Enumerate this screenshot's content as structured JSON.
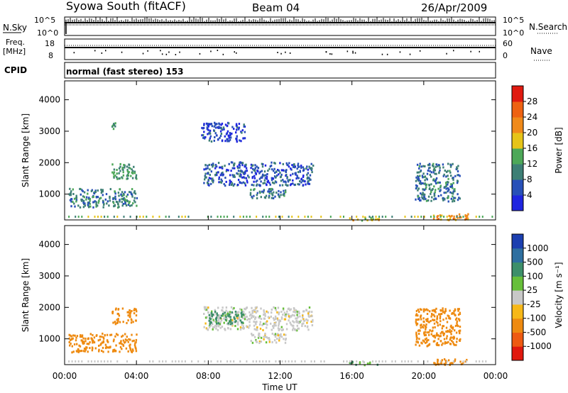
{
  "header": {
    "title": "Syowa South (fitACF)",
    "beam": "Beam 04",
    "date": "26/Apr/2009"
  },
  "summary_panels": {
    "nsky_label": "N.Sky",
    "nsky_ticks": [
      "10^5",
      "10^0"
    ],
    "nsearch_label": "N.Search",
    "nsearch_ticks": [
      "10^5",
      "10^0"
    ],
    "freq_label": "Freq.",
    "freq_unit": "[MHz]",
    "freq_ticks": [
      "18",
      "8"
    ],
    "nave_label": "Nave",
    "nave_ticks": [
      "60",
      "0"
    ],
    "cpid_label": "CPID",
    "cpid_text": "normal (fast stereo) 153"
  },
  "axes": {
    "ylabel": "Slant Range [km]",
    "xlabel": "Time UT",
    "yticks": [
      "1000",
      "2000",
      "3000",
      "4000"
    ],
    "xticks": [
      "00:00",
      "04:00",
      "08:00",
      "12:00",
      "16:00",
      "20:00",
      "00:00"
    ]
  },
  "power_colorbar": {
    "label": "Power [dB]",
    "ticks": [
      "4",
      "8",
      "12",
      "16",
      "20",
      "24",
      "28"
    ],
    "colors": [
      "#1f25e0",
      "#2850b8",
      "#3d7f75",
      "#4da858",
      "#e6c418",
      "#f08a1a",
      "#ee6212",
      "#e01a10"
    ]
  },
  "velocity_colorbar": {
    "label": "Velocity [m s⁻¹]",
    "ticks": [
      "1000",
      "500",
      "100",
      "25",
      "-25",
      "-100",
      "-500",
      "-1000"
    ],
    "colors": [
      "#1b3fb0",
      "#2e6fa0",
      "#3d8f6a",
      "#67bf3a",
      "#c8c8c8",
      "#f7b818",
      "#ee8a10",
      "#ee5a12",
      "#e0180e"
    ]
  },
  "chart_data": [
    {
      "type": "heatmap",
      "panel": "power",
      "xlabel": "Time UT",
      "ylabel": "Slant Range [km]",
      "xlim": [
        0,
        24
      ],
      "ylim": [
        180,
        4600
      ],
      "colorbar": "Power [dB]",
      "regions": [
        {
          "t0": 0.2,
          "t1": 4.0,
          "r0": 600,
          "r1": 1200,
          "value": 10
        },
        {
          "t0": 2.6,
          "t1": 4.0,
          "r0": 1500,
          "r1": 2000,
          "value": 12
        },
        {
          "t0": 2.6,
          "t1": 2.8,
          "r0": 3100,
          "r1": 3300,
          "value": 12
        },
        {
          "t0": 7.7,
          "t1": 13.8,
          "r0": 1300,
          "r1": 2050,
          "value": 6
        },
        {
          "t0": 10.3,
          "t1": 12.3,
          "r0": 900,
          "r1": 1200,
          "value": 10
        },
        {
          "t0": 7.6,
          "t1": 10.0,
          "r0": 2700,
          "r1": 3300,
          "value": 5
        },
        {
          "t0": 15.8,
          "t1": 17.5,
          "r0": 190,
          "r1": 300,
          "value": 18
        },
        {
          "t0": 19.5,
          "t1": 22.0,
          "r0": 800,
          "r1": 2000,
          "value": 9
        },
        {
          "t0": 20.5,
          "t1": 22.5,
          "r0": 200,
          "r1": 400,
          "value": 22
        }
      ]
    },
    {
      "type": "heatmap",
      "panel": "velocity",
      "xlabel": "Time UT",
      "ylabel": "Slant Range [km]",
      "xlim": [
        0,
        24
      ],
      "ylim": [
        180,
        4600
      ],
      "colorbar": "Velocity [m s^-1]",
      "regions": [
        {
          "t0": 0.2,
          "t1": 4.0,
          "r0": 600,
          "r1": 1200,
          "value": -200
        },
        {
          "t0": 2.6,
          "t1": 4.0,
          "r0": 1500,
          "r1": 2000,
          "value": -150
        },
        {
          "t0": 7.7,
          "t1": 13.8,
          "r0": 1300,
          "r1": 2050,
          "value": 0
        },
        {
          "t0": 8.0,
          "t1": 10.0,
          "r0": 1500,
          "r1": 1900,
          "value": 150
        },
        {
          "t0": 10.3,
          "t1": 12.3,
          "r0": 900,
          "r1": 1200,
          "value": 0
        },
        {
          "t0": 15.8,
          "t1": 17.5,
          "r0": 190,
          "r1": 300,
          "value": 60
        },
        {
          "t0": 19.5,
          "t1": 22.0,
          "r0": 800,
          "r1": 2000,
          "value": -300
        },
        {
          "t0": 20.5,
          "t1": 22.5,
          "r0": 200,
          "r1": 400,
          "value": -400
        }
      ]
    }
  ]
}
